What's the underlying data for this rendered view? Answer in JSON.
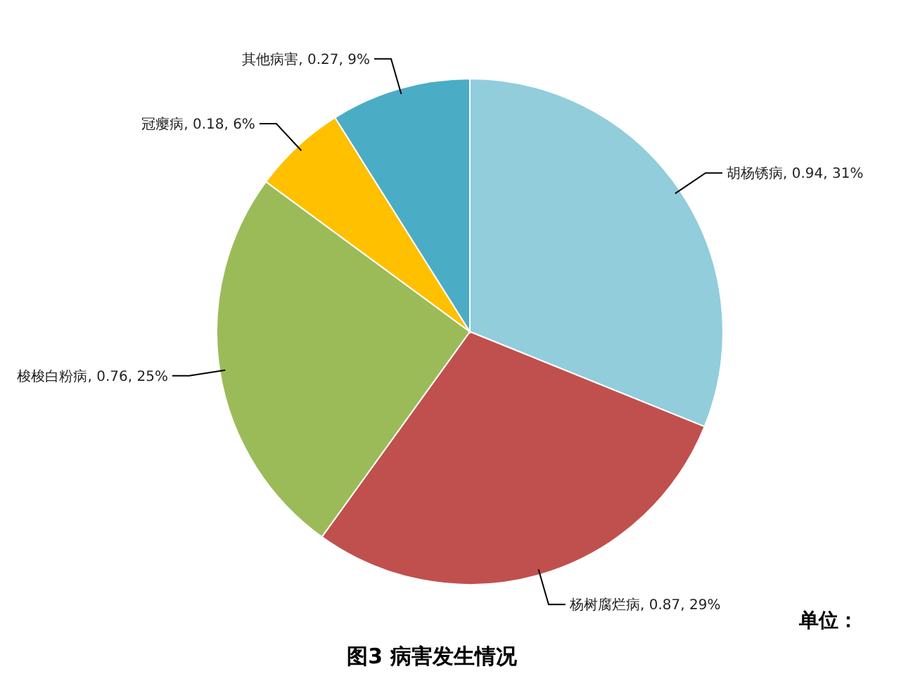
{
  "chart_data": {
    "type": "pie",
    "title": "图3 病害发生情况",
    "categories": [
      "胡杨锈病",
      "杨树腐烂病",
      "梭梭白粉病",
      "冠瘿病",
      "其他病害"
    ],
    "values": [
      0.94,
      0.87,
      0.76,
      0.18,
      0.27
    ],
    "value_labels": [
      "0.94, 31%",
      "0.87, 29%",
      "0.76, 25%",
      "0.18, 6%",
      "0.27, 9%"
    ],
    "colors": [
      "#92cddc",
      "#c0504d",
      "#9bbb59",
      "#ffc000",
      "#4bacc6"
    ],
    "annotations": [
      "单位："
    ]
  }
}
